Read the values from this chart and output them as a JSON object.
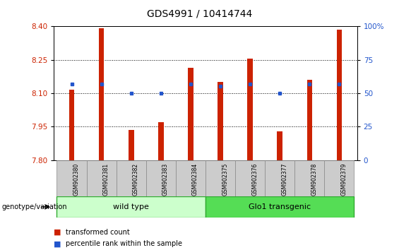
{
  "title": "GDS4991 / 10414744",
  "samples": [
    "GSM902380",
    "GSM902381",
    "GSM902382",
    "GSM902383",
    "GSM902384",
    "GSM902375",
    "GSM902376",
    "GSM902377",
    "GSM902378",
    "GSM902379"
  ],
  "transformed_count": [
    8.115,
    8.39,
    7.935,
    7.97,
    8.215,
    8.15,
    8.255,
    7.93,
    8.16,
    8.385
  ],
  "percentile_rank": [
    57,
    57,
    50,
    50,
    57,
    55,
    57,
    50,
    57,
    57
  ],
  "ylim_left": [
    7.8,
    8.4
  ],
  "ylim_right": [
    0,
    100
  ],
  "yticks_left": [
    7.8,
    7.95,
    8.1,
    8.25,
    8.4
  ],
  "yticks_right": [
    0,
    25,
    50,
    75,
    100
  ],
  "bar_color": "#cc2200",
  "dot_color": "#2255cc",
  "bar_width": 0.18,
  "baseline": 7.8,
  "wild_type_label": "wild type",
  "glo1_label": "Glo1 transgenic",
  "group_label": "genotype/variation",
  "legend_red": "transformed count",
  "legend_blue": "percentile rank within the sample",
  "wild_type_color": "#ccffcc",
  "glo1_color": "#55dd55",
  "tick_label_color_left": "#cc2200",
  "tick_label_color_right": "#2255cc",
  "background_color": "#ffffff"
}
